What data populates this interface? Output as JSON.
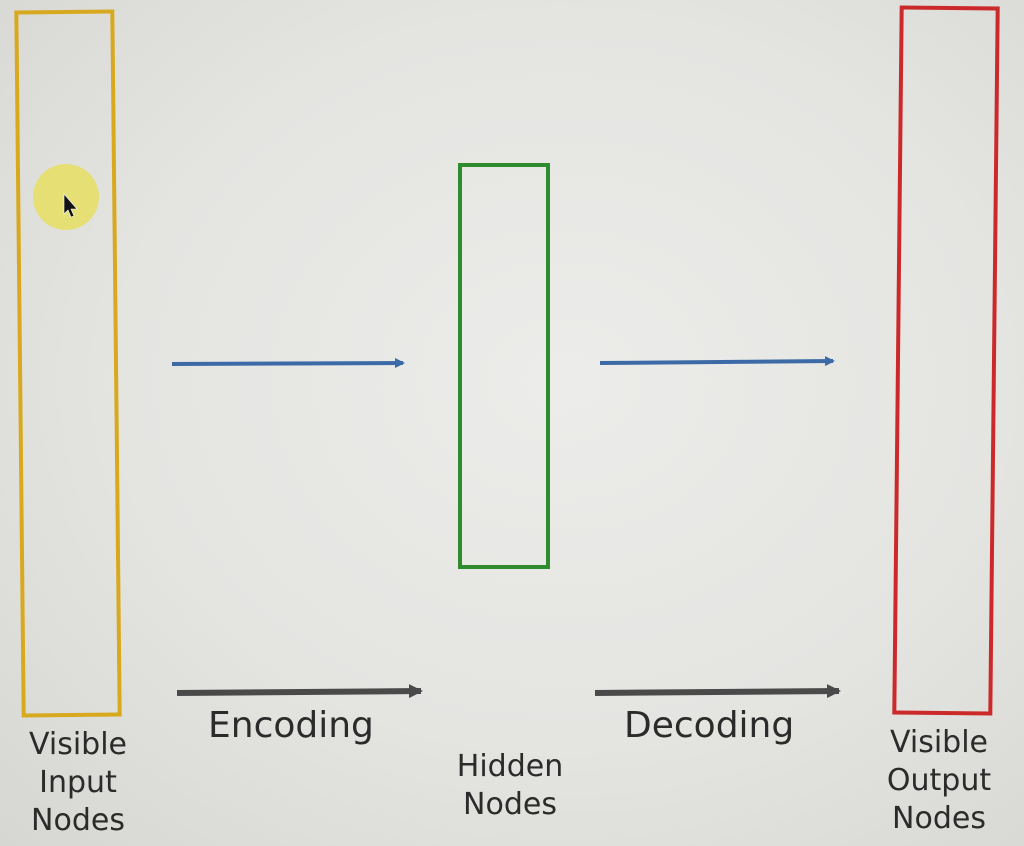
{
  "diagram": {
    "layers": [
      {
        "id": "input",
        "lines": [
          "Visible",
          "Input",
          "Nodes"
        ],
        "border_color": "#d8a91e"
      },
      {
        "id": "hidden",
        "lines": [
          "Hidden",
          "Nodes"
        ],
        "border_color": "#2e8b2e"
      },
      {
        "id": "output",
        "lines": [
          "Visible",
          "Output",
          "Nodes"
        ],
        "border_color": "#cc2a2a"
      }
    ],
    "processes": [
      {
        "id": "encoding",
        "label": "Encoding"
      },
      {
        "id": "decoding",
        "label": "Decoding"
      }
    ],
    "colors": {
      "flow_arrow": "#3c6aa6",
      "process_arrow": "#4a4a4a",
      "cursor_highlight": "#e6df5a"
    }
  }
}
